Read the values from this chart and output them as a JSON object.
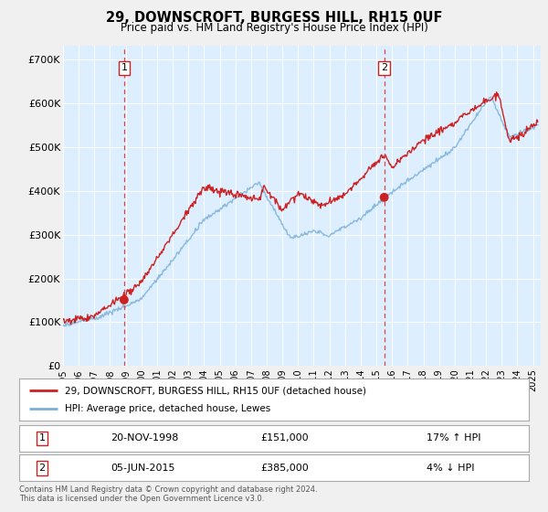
{
  "title": "29, DOWNSCROFT, BURGESS HILL, RH15 0UF",
  "subtitle": "Price paid vs. HM Land Registry's House Price Index (HPI)",
  "background_color": "#f0f0f0",
  "plot_bg_color": "#ddeeff",
  "ylabel_ticks": [
    "£0",
    "£100K",
    "£200K",
    "£300K",
    "£400K",
    "£500K",
    "£600K",
    "£700K"
  ],
  "ytick_values": [
    0,
    100000,
    200000,
    300000,
    400000,
    500000,
    600000,
    700000
  ],
  "ylim": [
    0,
    730000
  ],
  "xlim_start": 1995.0,
  "xlim_end": 2025.5,
  "sale1_x": 1998.9,
  "sale1_y": 151000,
  "sale1_label": "1",
  "sale1_date": "20-NOV-1998",
  "sale1_price": "£151,000",
  "sale1_hpi": "17% ↑ HPI",
  "sale2_x": 2015.5,
  "sale2_y": 385000,
  "sale2_label": "2",
  "sale2_date": "05-JUN-2015",
  "sale2_price": "£385,000",
  "sale2_hpi": "4% ↓ HPI",
  "legend_line1": "29, DOWNSCROFT, BURGESS HILL, RH15 0UF (detached house)",
  "legend_line2": "HPI: Average price, detached house, Lewes",
  "footer": "Contains HM Land Registry data © Crown copyright and database right 2024.\nThis data is licensed under the Open Government Licence v3.0.",
  "line_red_color": "#cc2222",
  "line_blue_color": "#7ab0d8",
  "grid_color": "#ffffff",
  "xtick_years": [
    1995,
    1996,
    1997,
    1998,
    1999,
    2000,
    2001,
    2002,
    2003,
    2004,
    2005,
    2006,
    2007,
    2008,
    2009,
    2010,
    2011,
    2012,
    2013,
    2014,
    2015,
    2016,
    2017,
    2018,
    2019,
    2020,
    2021,
    2022,
    2023,
    2024,
    2025
  ]
}
